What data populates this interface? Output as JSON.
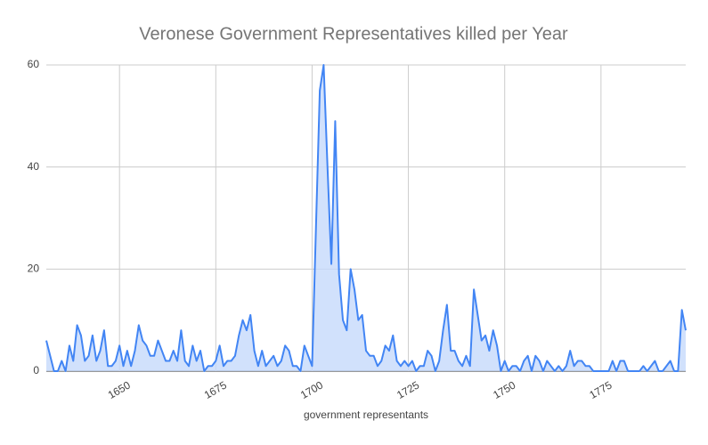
{
  "chart_data": {
    "type": "area",
    "title": "Veronese Government Representatives killed per Year",
    "x_label": "government representants",
    "x": [
      1631,
      1632,
      1633,
      1634,
      1635,
      1636,
      1637,
      1638,
      1639,
      1640,
      1641,
      1642,
      1643,
      1644,
      1645,
      1646,
      1647,
      1648,
      1649,
      1650,
      1651,
      1652,
      1653,
      1654,
      1655,
      1656,
      1657,
      1658,
      1659,
      1660,
      1661,
      1662,
      1663,
      1664,
      1665,
      1666,
      1667,
      1668,
      1669,
      1670,
      1671,
      1672,
      1673,
      1674,
      1675,
      1676,
      1677,
      1678,
      1679,
      1680,
      1681,
      1682,
      1683,
      1684,
      1685,
      1686,
      1687,
      1688,
      1689,
      1690,
      1691,
      1692,
      1693,
      1694,
      1695,
      1696,
      1697,
      1698,
      1699,
      1700,
      1701,
      1702,
      1703,
      1704,
      1705,
      1706,
      1707,
      1708,
      1709,
      1710,
      1711,
      1712,
      1713,
      1714,
      1715,
      1716,
      1717,
      1718,
      1719,
      1720,
      1721,
      1722,
      1723,
      1724,
      1725,
      1726,
      1727,
      1728,
      1729,
      1730,
      1731,
      1732,
      1733,
      1734,
      1735,
      1736,
      1737,
      1738,
      1739,
      1740,
      1741,
      1742,
      1743,
      1744,
      1745,
      1746,
      1747,
      1748,
      1749,
      1750,
      1751,
      1752,
      1753,
      1754,
      1755,
      1756,
      1757,
      1758,
      1759,
      1760,
      1761,
      1762,
      1763,
      1764,
      1765,
      1766,
      1767,
      1768,
      1769,
      1770,
      1771,
      1772,
      1773,
      1774,
      1775,
      1776,
      1777,
      1778,
      1779,
      1780,
      1781,
      1782,
      1783,
      1784,
      1785,
      1786,
      1787,
      1788,
      1789,
      1790,
      1791,
      1792,
      1793,
      1794,
      1795,
      1796,
      1797
    ],
    "values": [
      6,
      3,
      0,
      0,
      2,
      0,
      5,
      2,
      9,
      7,
      2,
      3,
      7,
      2,
      4,
      8,
      1,
      1,
      2,
      5,
      1,
      4,
      1,
      4,
      9,
      6,
      5,
      3,
      3,
      6,
      4,
      2,
      2,
      4,
      2,
      8,
      2,
      1,
      5,
      2,
      4,
      0,
      1,
      1,
      2,
      5,
      1,
      2,
      2,
      3,
      7,
      10,
      8,
      11,
      4,
      1,
      4,
      1,
      2,
      3,
      1,
      2,
      5,
      4,
      1,
      1,
      0,
      5,
      3,
      1,
      28,
      55,
      60,
      40,
      21,
      49,
      19,
      10,
      8,
      20,
      16,
      10,
      11,
      4,
      3,
      3,
      1,
      2,
      5,
      4,
      7,
      2,
      1,
      2,
      1,
      2,
      0,
      1,
      1,
      4,
      3,
      0,
      2,
      8,
      13,
      4,
      4,
      2,
      1,
      3,
      1,
      16,
      11,
      6,
      7,
      4,
      8,
      5,
      0,
      2,
      0,
      1,
      1,
      0,
      2,
      3,
      0,
      3,
      2,
      0,
      2,
      1,
      0,
      1,
      0,
      1,
      4,
      1,
      2,
      2,
      1,
      1,
      0,
      0,
      0,
      0,
      0,
      2,
      0,
      2,
      2,
      0,
      0,
      0,
      0,
      1,
      0,
      1,
      2,
      0,
      0,
      1,
      2,
      0,
      0,
      12,
      8
    ],
    "color": "#4285f4",
    "fill": "#c6d9fb",
    "xlim": [
      1631,
      1797
    ],
    "xticks": [
      1650,
      1675,
      1700,
      1725,
      1750,
      1775
    ],
    "ylim": [
      0,
      60
    ],
    "yticks": [
      0,
      20,
      40,
      60
    ],
    "grid": true
  }
}
